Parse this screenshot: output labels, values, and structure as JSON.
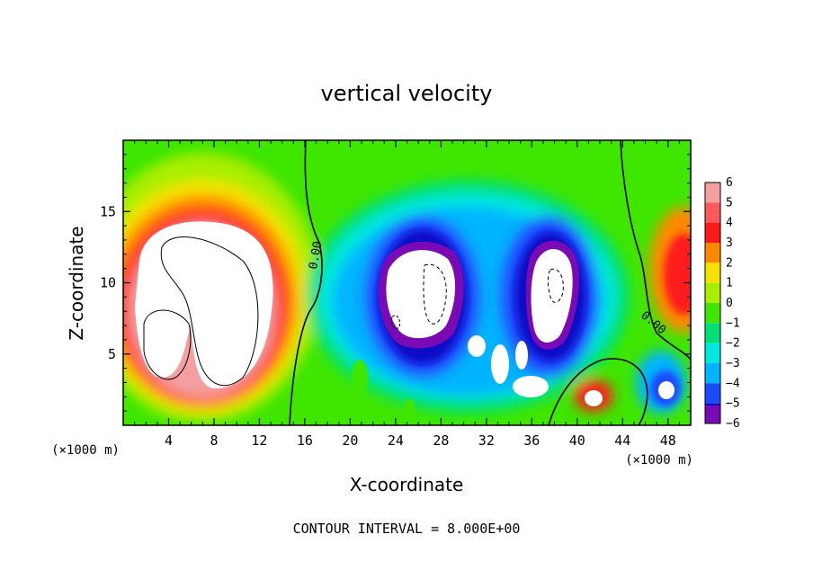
{
  "chart_data": {
    "type": "heatmap",
    "title": "vertical velocity",
    "xlabel": "X-coordinate",
    "ylabel": "Z-coordinate",
    "x_unit": "(×1000 m)",
    "z_unit": "(×1000 m)",
    "xlim": [
      0,
      50
    ],
    "ylim": [
      0,
      20
    ],
    "x_ticks": [
      4,
      8,
      12,
      16,
      20,
      24,
      28,
      32,
      36,
      40,
      44,
      48
    ],
    "y_ticks": [
      5,
      10,
      15
    ],
    "colorbar": {
      "levels": [
        6,
        5,
        4,
        3,
        2,
        1,
        0,
        -1,
        -2,
        -3,
        -4,
        -5,
        -6
      ],
      "colors": {
        "6": "#f4a0a0",
        "5": "#ff5a5a",
        "4": "#ff1a1a",
        "3": "#ff8800",
        "2": "#f5e200",
        "1": "#a8ee00",
        "0": "#3ee600",
        "-1": "#00e078",
        "-2": "#00e8e0",
        "-3": "#00b4ff",
        "-4": "#1a4cff",
        "-5": "#0a08c8",
        "-6": "#7a0ab4"
      }
    },
    "contour_labels": [
      "0.00",
      "0.00"
    ],
    "annotation": "CONTOUR INTERVAL = 8.000E+00",
    "features": [
      {
        "x": 6.5,
        "z": 9.5,
        "value": 6
      },
      {
        "x": 27,
        "z": 9,
        "value": -6
      },
      {
        "x": 37.5,
        "z": 9,
        "value": -6
      },
      {
        "x": 41,
        "z": 2,
        "value": 5
      },
      {
        "x": 49,
        "z": 10,
        "value": 4
      },
      {
        "x": 47.5,
        "z": 2.5,
        "value": -6
      }
    ]
  }
}
